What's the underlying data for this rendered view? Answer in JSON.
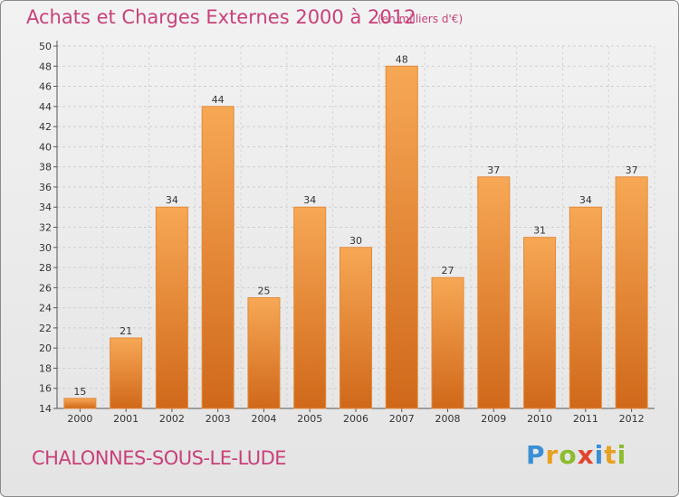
{
  "header": {
    "title": "Achats et Charges Externes 2000 à 2012",
    "unit": "(en milliers d'€)"
  },
  "footer": {
    "town": "CHALONNES-SOUS-LE-LUDE",
    "brand": [
      "P",
      "r",
      "o",
      "x",
      "i",
      "t",
      "i"
    ]
  },
  "colors": {
    "bar_light": "#f7a855",
    "bar_dark": "#d0681a",
    "title": "#c8417a"
  },
  "chart_data": {
    "type": "bar",
    "title": "Achats et Charges Externes 2000 à 2012",
    "subtitle": "(en milliers d'€)",
    "xlabel": "",
    "ylabel": "",
    "categories": [
      "2000",
      "2001",
      "2002",
      "2003",
      "2004",
      "2005",
      "2006",
      "2007",
      "2008",
      "2009",
      "2010",
      "2011",
      "2012"
    ],
    "values": [
      15,
      21,
      34,
      44,
      25,
      34,
      30,
      48,
      27,
      37,
      31,
      34,
      37
    ],
    "ylim": [
      14,
      50
    ],
    "yticks": [
      14,
      16,
      18,
      20,
      22,
      24,
      26,
      28,
      30,
      32,
      34,
      36,
      38,
      40,
      42,
      44,
      46,
      48,
      50
    ],
    "grid": true
  }
}
